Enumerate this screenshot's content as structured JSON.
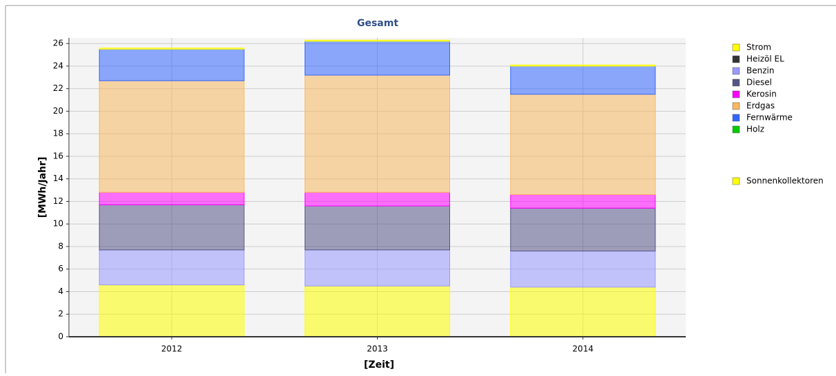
{
  "chart_data": {
    "type": "stacked_bar",
    "title": "Gesamt",
    "x_label": "[Zeit]",
    "y_label": "[MWh/Jahr]",
    "categories": [
      "2012",
      "2013",
      "2014"
    ],
    "series": [
      {
        "name": "Strom",
        "color": "#ffff00",
        "values": [
          4.6,
          4.5,
          4.4
        ]
      },
      {
        "name": "Heizöl EL",
        "color": "#333333",
        "values": [
          0,
          0,
          0
        ]
      },
      {
        "name": "Benzin",
        "color": "#9999ff",
        "values": [
          3.1,
          3.2,
          3.2
        ]
      },
      {
        "name": "Diesel",
        "color": "#555588",
        "values": [
          4.0,
          3.9,
          3.8
        ]
      },
      {
        "name": "Kerosin",
        "color": "#ff00ff",
        "values": [
          1.1,
          1.2,
          1.2
        ]
      },
      {
        "name": "Erdgas",
        "color": "#f8b860",
        "values": [
          9.9,
          10.4,
          8.9
        ]
      },
      {
        "name": "Fernwärme",
        "color": "#3366ff",
        "values": [
          2.8,
          3.0,
          2.5
        ]
      },
      {
        "name": "Holz",
        "color": "#00cc00",
        "values": [
          0,
          0,
          0
        ]
      },
      {
        "name": "Sonnenkollektoren",
        "color": "#ffff00",
        "values": [
          0.1,
          0.1,
          0.1
        ]
      }
    ],
    "ylim": [
      0,
      26.5
    ],
    "yticks": [
      0,
      2,
      4,
      6,
      8,
      10,
      12,
      14,
      16,
      18,
      20,
      22,
      24,
      26
    ],
    "grid": true
  }
}
